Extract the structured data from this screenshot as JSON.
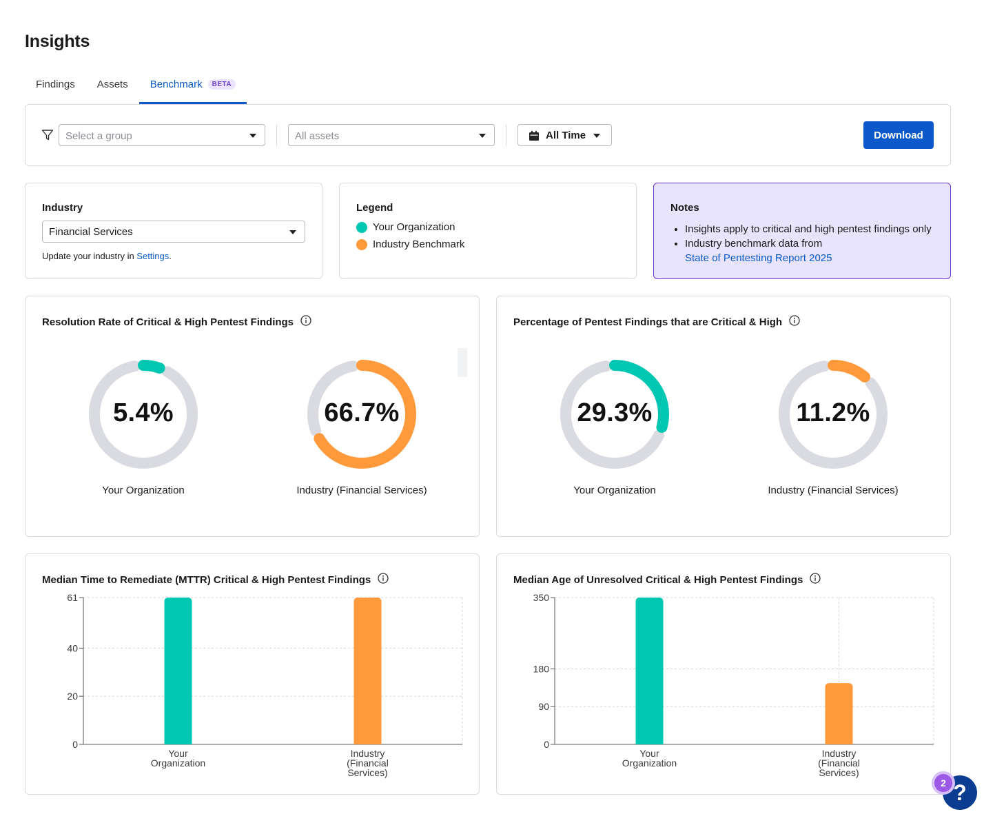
{
  "page": {
    "title": "Insights"
  },
  "tabs": [
    {
      "label": "Findings"
    },
    {
      "label": "Assets"
    },
    {
      "label": "Benchmark",
      "badge": "BETA"
    }
  ],
  "filters": {
    "group_placeholder": "Select a group",
    "assets_placeholder": "All assets",
    "time_label": "All Time",
    "download_label": "Download"
  },
  "industry": {
    "label": "Industry",
    "selected": "Financial Services",
    "hint_text": "Update your industry in ",
    "hint_link": "Settings",
    "hint_end": "."
  },
  "legend": {
    "title": "Legend",
    "items": [
      {
        "label": "Your Organization",
        "color": "#00c7b1"
      },
      {
        "label": "Industry Benchmark",
        "color": "#ff9a3c"
      }
    ]
  },
  "notes": {
    "title": "Notes",
    "items": [
      "Insights apply to critical and high pentest findings only",
      "Industry benchmark data from"
    ],
    "link": "State of Pentesting Report 2025"
  },
  "colors": {
    "org": "#00c7b1",
    "industry": "#ff9a3c",
    "track": "#d9dbe0",
    "accent": "#0a58ca"
  },
  "chart_data": [
    {
      "type": "donut",
      "title": "Resolution Rate of Critical & High Pentest Findings",
      "series": [
        {
          "name": "Your Organization",
          "value": 5.4,
          "display": "5.4%",
          "color": "#00c7b1"
        },
        {
          "name": "Industry (Financial Services)",
          "value": 66.7,
          "display": "66.7%",
          "color": "#ff9a3c"
        }
      ]
    },
    {
      "type": "donut",
      "title": "Percentage of Pentest Findings that are Critical & High",
      "series": [
        {
          "name": "Your Organization",
          "value": 29.3,
          "display": "29.3%",
          "color": "#00c7b1"
        },
        {
          "name": "Industry (Financial Services)",
          "value": 11.2,
          "display": "11.2%",
          "color": "#ff9a3c"
        }
      ]
    },
    {
      "type": "bar",
      "title": "Median Time to Remediate (MTTR) Critical & High Pentest Findings",
      "categories": [
        [
          "Your",
          "Organization"
        ],
        [
          "Industry",
          "(Financial",
          "Services)"
        ]
      ],
      "values": [
        61,
        61
      ],
      "colors": [
        "#00c7b1",
        "#ff9a3c"
      ],
      "yticks": [
        0,
        20,
        40,
        61
      ],
      "ylim": [
        0,
        61
      ]
    },
    {
      "type": "bar",
      "title": "Median Age of Unresolved Critical & High Pentest Findings",
      "categories": [
        [
          "Your",
          "Organization"
        ],
        [
          "Industry",
          "(Financial",
          "Services)"
        ]
      ],
      "values": [
        350,
        146
      ],
      "colors": [
        "#00c7b1",
        "#ff9a3c"
      ],
      "yticks": [
        0,
        90,
        180,
        350
      ],
      "ylim": [
        0,
        350
      ]
    }
  ],
  "help": {
    "icon": "?",
    "badge_count": "2"
  }
}
